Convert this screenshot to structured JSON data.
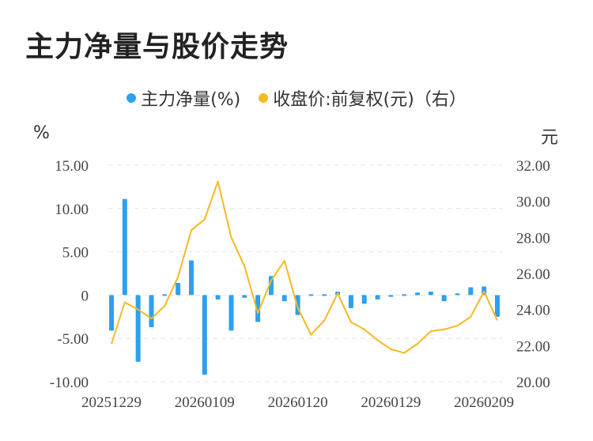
{
  "title": "主力净量与股价走势",
  "legend": {
    "series1": "主力净量(%)",
    "series2": "收盘价:前复权(元)（右）"
  },
  "colors": {
    "bar": "#2f9ff0",
    "line": "#f5b921",
    "grid": "#e4e4e4"
  },
  "chart_data": {
    "type": "bar",
    "left_unit": "%",
    "right_unit": "元",
    "y_left": {
      "ticks": [
        "15.00",
        "10.00",
        "5.00",
        "0",
        "-5.00",
        "-10.00"
      ],
      "range": [
        -10,
        15
      ]
    },
    "y_right": {
      "ticks": [
        "32.00",
        "30.00",
        "28.00",
        "26.00",
        "24.00",
        "22.00",
        "20.00"
      ],
      "range": [
        20,
        32
      ]
    },
    "x_ticks": [
      {
        "index": 0,
        "label": "20251229"
      },
      {
        "index": 7,
        "label": "20260109"
      },
      {
        "index": 14,
        "label": "20260120"
      },
      {
        "index": 21,
        "label": "20260129"
      },
      {
        "index": 28,
        "label": "20260209"
      }
    ],
    "series": [
      {
        "name": "主力净量(%)",
        "type": "bar",
        "values": [
          -4.1,
          11.1,
          -7.7,
          -3.7,
          0.1,
          1.4,
          4.0,
          -9.2,
          -0.5,
          -4.1,
          -0.3,
          -3.1,
          2.2,
          -0.7,
          -2.3,
          0.05,
          0.1,
          0.4,
          -1.5,
          -1.0,
          -0.5,
          -0.2,
          -0.1,
          0.3,
          0.4,
          -0.7,
          0.2,
          0.9,
          1.0,
          -2.5
        ]
      },
      {
        "name": "收盘价:前复权(元)（右）",
        "type": "line",
        "axis": "right",
        "values": [
          22.1,
          24.4,
          24.0,
          23.5,
          24.2,
          25.8,
          28.4,
          29.0,
          31.1,
          28.0,
          26.4,
          23.8,
          25.6,
          26.7,
          24.1,
          22.6,
          23.4,
          24.9,
          23.3,
          22.9,
          22.3,
          21.8,
          21.6,
          22.1,
          22.8,
          22.9,
          23.1,
          23.6,
          25.0,
          23.4
        ]
      }
    ]
  }
}
